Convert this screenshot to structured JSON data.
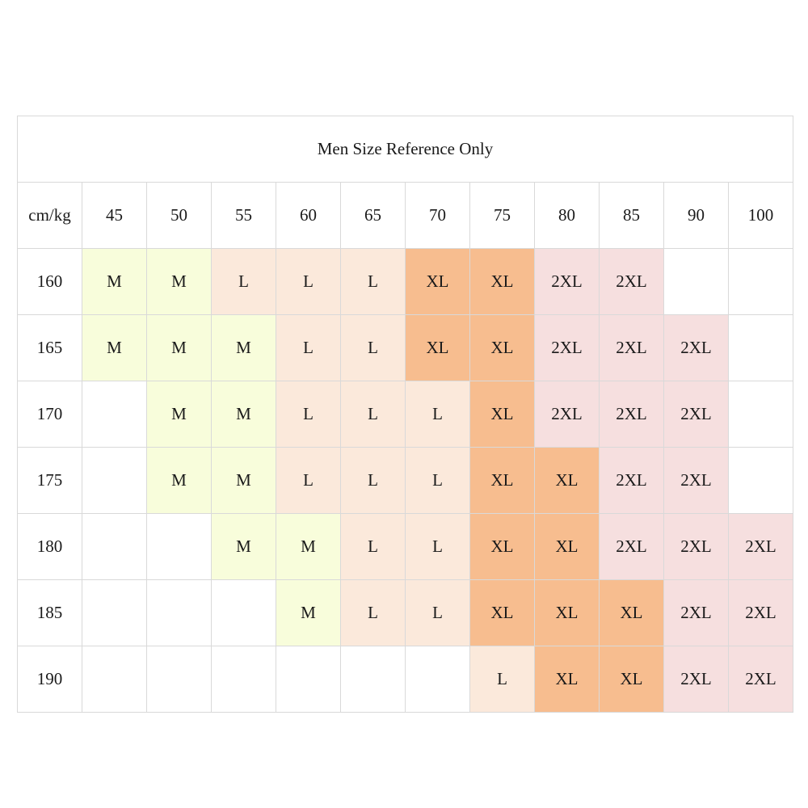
{
  "title": "Men Size Reference Only",
  "corner_label": "cm/kg",
  "weights": [
    "45",
    "50",
    "55",
    "60",
    "65",
    "70",
    "75",
    "80",
    "85",
    "90",
    "100"
  ],
  "colors": {
    "M": "#f8fddb",
    "L": "#fbe9db",
    "XL": "#f7bd8f",
    "2XL": "#f6dfdf",
    "empty": "#ffffff",
    "grid_line": "#d9d9d9"
  },
  "rows": [
    {
      "height": "160",
      "sizes": [
        "M",
        "M",
        "L",
        "L",
        "L",
        "XL",
        "XL",
        "2XL",
        "2XL",
        "",
        ""
      ]
    },
    {
      "height": "165",
      "sizes": [
        "M",
        "M",
        "M",
        "L",
        "L",
        "XL",
        "XL",
        "2XL",
        "2XL",
        "2XL",
        ""
      ]
    },
    {
      "height": "170",
      "sizes": [
        "",
        "M",
        "M",
        "L",
        "L",
        "L",
        "XL",
        "2XL",
        "2XL",
        "2XL",
        ""
      ]
    },
    {
      "height": "175",
      "sizes": [
        "",
        "M",
        "M",
        "L",
        "L",
        "L",
        "XL",
        "XL",
        "2XL",
        "2XL",
        ""
      ]
    },
    {
      "height": "180",
      "sizes": [
        "",
        "",
        "M",
        "M",
        "L",
        "L",
        "XL",
        "XL",
        "2XL",
        "2XL",
        "2XL"
      ]
    },
    {
      "height": "185",
      "sizes": [
        "",
        "",
        "",
        "M",
        "L",
        "L",
        "XL",
        "XL",
        "XL",
        "2XL",
        "2XL"
      ]
    },
    {
      "height": "190",
      "sizes": [
        "",
        "",
        "",
        "",
        "",
        "",
        "L",
        "XL",
        "XL",
        "2XL",
        "2XL"
      ]
    }
  ]
}
